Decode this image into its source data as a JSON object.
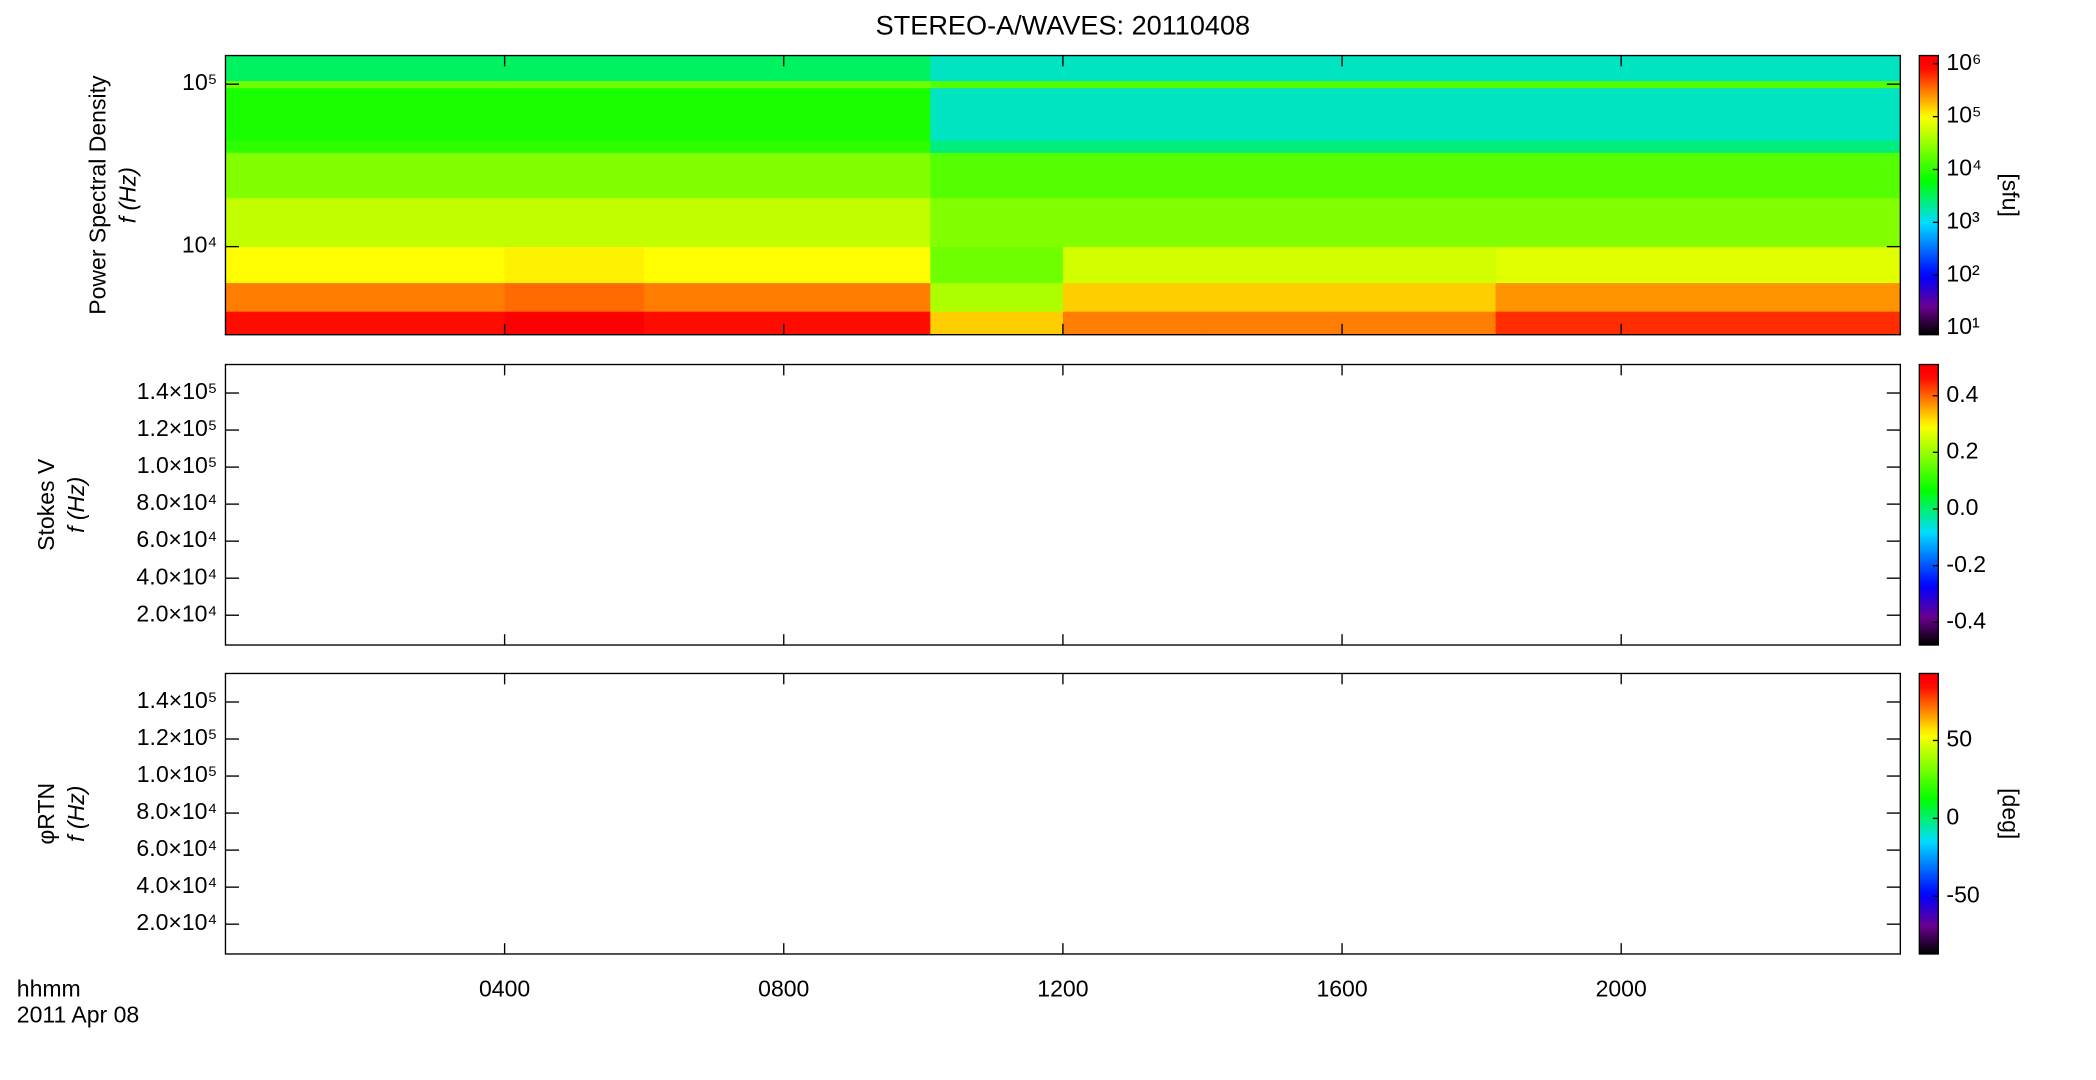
{
  "chart_data": [
    {
      "type": "heatmap",
      "title": "STEREO-A/WAVES: 20110408",
      "ylabel": [
        "Power Spectral Density",
        "f (Hz)"
      ],
      "yscale": "log",
      "ylim": [
        2870,
        150000
      ],
      "yticks": [
        {
          "value": 10000,
          "label": "10⁴"
        },
        {
          "value": 100000,
          "label": "10⁵"
        }
      ],
      "x_edges": [
        0,
        2,
        4,
        6,
        8,
        10.1,
        12,
        14,
        16,
        18.2,
        20,
        22,
        24
      ],
      "y_edges": [
        2870,
        4000,
        6000,
        10000,
        20000,
        38000,
        45000,
        95000,
        105000,
        150000
      ],
      "z": [
        [
          800000,
          800000,
          900000,
          800000,
          800000,
          150000,
          300000,
          300000,
          300000,
          600000,
          600000,
          600000
        ],
        [
          300000,
          300000,
          350000,
          300000,
          300000,
          40000,
          150000,
          150000,
          150000,
          250000,
          250000,
          250000
        ],
        [
          100000,
          100000,
          110000,
          100000,
          100000,
          20000,
          60000,
          60000,
          60000,
          70000,
          70000,
          70000
        ],
        [
          50000,
          50000,
          50000,
          50000,
          50000,
          25000,
          25000,
          25000,
          25000,
          25000,
          25000,
          25000
        ],
        [
          25000,
          25000,
          25000,
          25000,
          25000,
          15000,
          15000,
          15000,
          15000,
          15000,
          15000,
          15000
        ],
        [
          10000,
          10000,
          10000,
          10000,
          10000,
          2500,
          2500,
          2500,
          2500,
          2500,
          2500,
          2500
        ],
        [
          8000,
          8000,
          8000,
          8000,
          8000,
          1500,
          1500,
          1500,
          1500,
          1500,
          1500,
          1500
        ],
        [
          20000,
          20000,
          20000,
          20000,
          20000,
          15000,
          15000,
          15000,
          15000,
          15000,
          15000,
          15000
        ],
        [
          3000,
          3000,
          3000,
          3000,
          3000,
          1500,
          1500,
          1500,
          1500,
          1500,
          1500,
          1500
        ]
      ],
      "zscale": "log",
      "zlim": [
        7.5,
        1430000
      ],
      "zticks": [
        {
          "value": 10,
          "label": "10¹"
        },
        {
          "value": 100,
          "label": "10²"
        },
        {
          "value": 1000,
          "label": "10³"
        },
        {
          "value": 10000,
          "label": "10⁴"
        },
        {
          "value": 100000,
          "label": "10⁵"
        },
        {
          "value": 1000000,
          "label": "10⁶"
        }
      ],
      "zlabel": "[sfu]"
    },
    {
      "type": "heatmap",
      "ylabel": [
        "Stokes V",
        "f (Hz)"
      ],
      "ylim": [
        3900,
        155400
      ],
      "yticks": [
        {
          "value": 20000,
          "label": "2.0×10⁴"
        },
        {
          "value": 40000,
          "label": "4.0×10⁴"
        },
        {
          "value": 60000,
          "label": "6.0×10⁴"
        },
        {
          "value": 80000,
          "label": "8.0×10⁴"
        },
        {
          "value": 100000,
          "label": "1.0×10⁵"
        },
        {
          "value": 120000,
          "label": "1.2×10⁵"
        },
        {
          "value": 140000,
          "label": "1.4×10⁵"
        }
      ],
      "zlim": [
        -0.48,
        0.51
      ],
      "zticks": [
        {
          "value": -0.4,
          "label": "-0.4"
        },
        {
          "value": -0.2,
          "label": "-0.2"
        },
        {
          "value": 0,
          "label": "0.0"
        },
        {
          "value": 0.2,
          "label": "0.2"
        },
        {
          "value": 0.4,
          "label": "0.4"
        }
      ]
    },
    {
      "type": "heatmap",
      "ylabel": [
        "φRTN",
        "f (Hz)"
      ],
      "ylim": [
        3900,
        155400
      ],
      "yticks": [
        {
          "value": 20000,
          "label": "2.0×10⁴"
        },
        {
          "value": 40000,
          "label": "4.0×10⁴"
        },
        {
          "value": 60000,
          "label": "6.0×10⁴"
        },
        {
          "value": 80000,
          "label": "8.0×10⁴"
        },
        {
          "value": 100000,
          "label": "1.0×10⁵"
        },
        {
          "value": 120000,
          "label": "1.2×10⁵"
        },
        {
          "value": 140000,
          "label": "1.4×10⁵"
        }
      ],
      "zlim": [
        -87,
        93
      ],
      "zticks": [
        -50,
        0,
        50
      ],
      "zlabel": "[deg]",
      "xlabel": [
        "hhmm",
        "2011 Apr 08"
      ],
      "xlim": [
        0,
        24
      ],
      "xticks": [
        {
          "value": 4,
          "label": "0400"
        },
        {
          "value": 8,
          "label": "0800"
        },
        {
          "value": 12,
          "label": "1200"
        },
        {
          "value": 16,
          "label": "1600"
        },
        {
          "value": 20,
          "label": "2000"
        }
      ]
    }
  ]
}
